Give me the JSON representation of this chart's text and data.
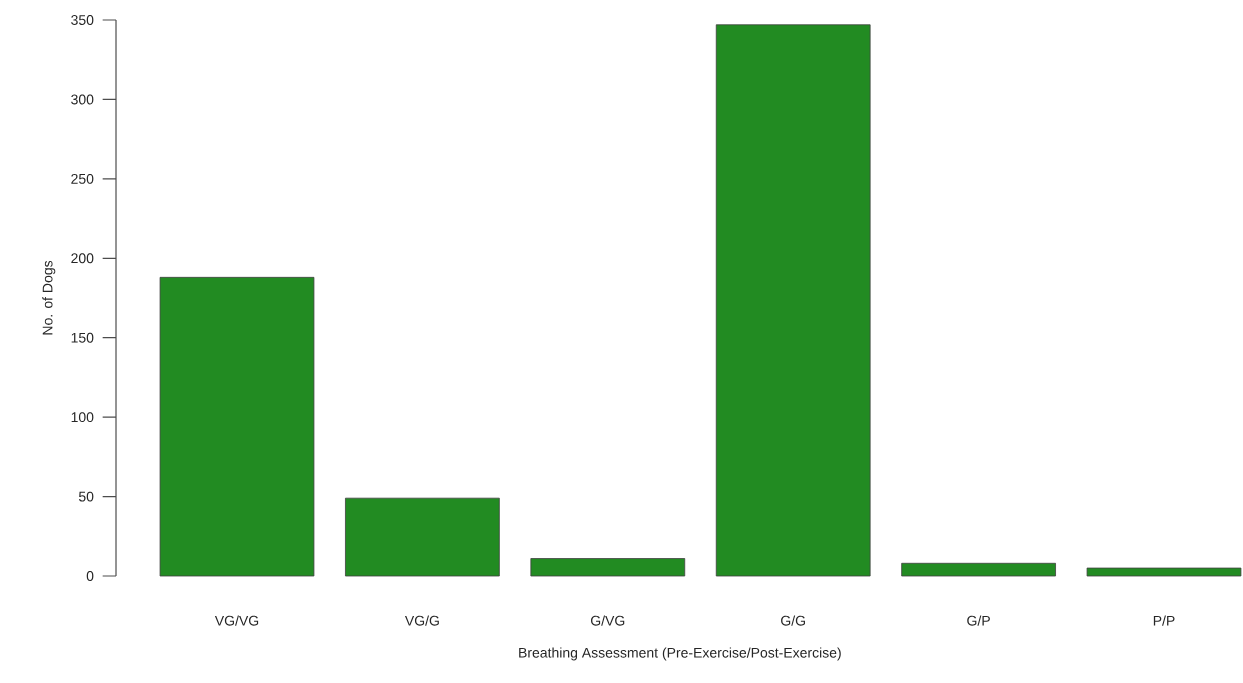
{
  "chart_data": {
    "type": "bar",
    "xlabel": "Breathing Assessment (Pre-Exercise/Post-Exercise)",
    "ylabel": "No. of Dogs",
    "categories": [
      "VG/VG",
      "VG/G",
      "G/VG",
      "G/G",
      "G/P",
      "P/P"
    ],
    "values": [
      188,
      49,
      11,
      347,
      8,
      5
    ],
    "color": "#228b22",
    "ylim": [
      0,
      350
    ],
    "yticks": [
      0,
      50,
      100,
      150,
      200,
      250,
      300,
      350
    ],
    "grid": false
  }
}
